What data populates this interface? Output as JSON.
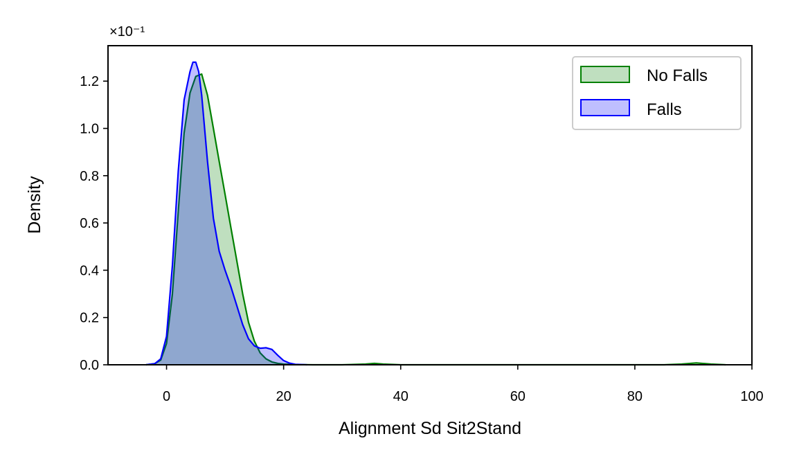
{
  "chart_data": {
    "type": "area",
    "xlabel": "Alignment Sd Sit2Stand",
    "ylabel": "Density",
    "y_offset_text": "×10⁻¹",
    "xlim": [
      -10,
      100
    ],
    "ylim": [
      0,
      1.35
    ],
    "x_ticks": [
      "0",
      "20",
      "40",
      "60",
      "80",
      "100"
    ],
    "y_ticks": [
      "0.0",
      "0.2",
      "0.4",
      "0.6",
      "0.8",
      "1.0",
      "1.2"
    ],
    "grid": false,
    "legend_position": "top-right",
    "series": [
      {
        "name": "No Falls",
        "color": "#008000",
        "fill": "rgba(0,128,0,0.25)",
        "points": [
          [
            -3.5,
            0
          ],
          [
            -2,
            0.005
          ],
          [
            -1,
            0.02
          ],
          [
            0,
            0.09
          ],
          [
            1,
            0.3
          ],
          [
            2,
            0.65
          ],
          [
            3,
            0.98
          ],
          [
            4,
            1.15
          ],
          [
            5,
            1.22
          ],
          [
            6,
            1.23
          ],
          [
            7,
            1.14
          ],
          [
            8,
            1.0
          ],
          [
            9,
            0.86
          ],
          [
            10,
            0.72
          ],
          [
            11,
            0.58
          ],
          [
            12,
            0.44
          ],
          [
            13,
            0.3
          ],
          [
            14,
            0.18
          ],
          [
            15,
            0.1
          ],
          [
            16,
            0.05
          ],
          [
            17,
            0.025
          ],
          [
            18,
            0.012
          ],
          [
            19,
            0.006
          ],
          [
            20,
            0.003
          ],
          [
            22,
            0.001
          ],
          [
            25,
            0
          ],
          [
            30,
            0
          ],
          [
            34,
            0.003
          ],
          [
            35.5,
            0.006
          ],
          [
            37,
            0.003
          ],
          [
            40,
            0
          ],
          [
            60,
            0
          ],
          [
            85,
            0
          ],
          [
            88,
            0.003
          ],
          [
            90.5,
            0.008
          ],
          [
            93,
            0.003
          ],
          [
            95.5,
            0
          ]
        ]
      },
      {
        "name": "Falls",
        "color": "#0000ff",
        "fill": "rgba(0,0,255,0.25)",
        "points": [
          [
            -3.5,
            0
          ],
          [
            -2,
            0.005
          ],
          [
            -1,
            0.025
          ],
          [
            0,
            0.12
          ],
          [
            1,
            0.42
          ],
          [
            2,
            0.82
          ],
          [
            3,
            1.12
          ],
          [
            4,
            1.24
          ],
          [
            4.5,
            1.28
          ],
          [
            5,
            1.28
          ],
          [
            5.5,
            1.24
          ],
          [
            6,
            1.14
          ],
          [
            7,
            0.86
          ],
          [
            8,
            0.62
          ],
          [
            9,
            0.48
          ],
          [
            10,
            0.4
          ],
          [
            11,
            0.33
          ],
          [
            12,
            0.25
          ],
          [
            13,
            0.17
          ],
          [
            14,
            0.11
          ],
          [
            15,
            0.08
          ],
          [
            16,
            0.07
          ],
          [
            17,
            0.072
          ],
          [
            18,
            0.065
          ],
          [
            19,
            0.04
          ],
          [
            20,
            0.018
          ],
          [
            21,
            0.007
          ],
          [
            22,
            0.002
          ],
          [
            24,
            0
          ]
        ]
      }
    ]
  }
}
